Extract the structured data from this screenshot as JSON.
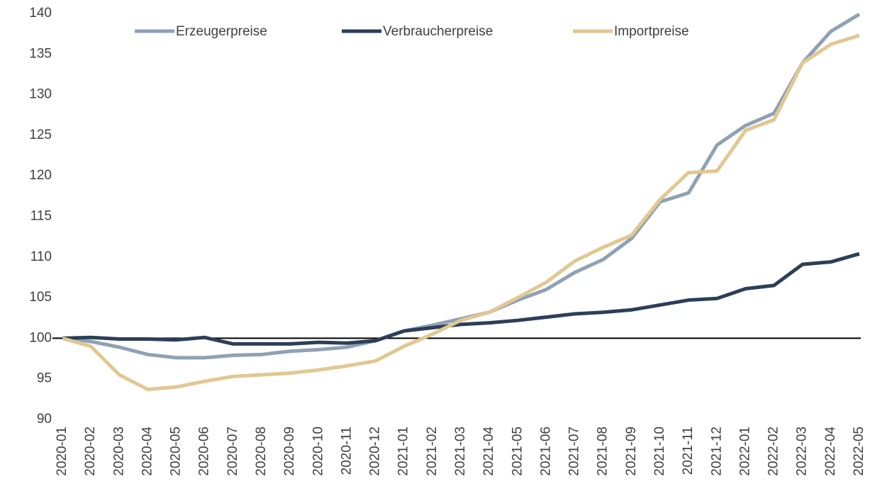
{
  "chart_data": {
    "type": "line",
    "categories": [
      "2020-01",
      "2020-02",
      "2020-03",
      "2020-04",
      "2020-05",
      "2020-06",
      "2020-07",
      "2020-08",
      "2020-09",
      "2020-10",
      "2020-11",
      "2020-12",
      "2021-01",
      "2021-02",
      "2021-03",
      "2021-04",
      "2021-05",
      "2021-06",
      "2021-07",
      "2021-08",
      "2021-09",
      "2021-10",
      "2021-11",
      "2021-12",
      "2022-01",
      "2022-02",
      "2022-03",
      "2022-04",
      "2022-05"
    ],
    "series": [
      {
        "name": "Erzeugerpreise",
        "color": "#8fa1b4",
        "values": [
          100,
          99.6,
          98.9,
          98.0,
          97.6,
          97.6,
          97.9,
          98.0,
          98.4,
          98.6,
          98.9,
          99.7,
          100.9,
          101.6,
          102.4,
          103.2,
          104.7,
          106.0,
          108.1,
          109.7,
          112.3,
          116.8,
          117.9,
          123.8,
          126.2,
          127.7,
          133.9,
          137.8,
          139.9
        ]
      },
      {
        "name": "Verbraucherpreise",
        "color": "#2c3f57",
        "values": [
          100,
          100.1,
          99.9,
          99.9,
          99.8,
          100.1,
          99.3,
          99.3,
          99.3,
          99.5,
          99.4,
          99.7,
          100.9,
          101.3,
          101.7,
          101.9,
          102.2,
          102.6,
          103.0,
          103.2,
          103.5,
          104.1,
          104.7,
          104.9,
          106.1,
          106.5,
          109.1,
          109.4,
          110.4
        ]
      },
      {
        "name": "Importpreise",
        "color": "#e2c792",
        "values": [
          100,
          99.0,
          95.5,
          93.7,
          94.0,
          94.7,
          95.3,
          95.5,
          95.7,
          96.1,
          96.6,
          97.2,
          99.0,
          100.5,
          102.2,
          103.2,
          105.0,
          106.9,
          109.5,
          111.2,
          112.7,
          117.1,
          120.4,
          120.6,
          125.6,
          126.9,
          133.9,
          136.2,
          137.3
        ]
      }
    ],
    "ylim": [
      90,
      140
    ],
    "yticks": [
      90,
      95,
      100,
      105,
      110,
      115,
      120,
      125,
      130,
      135,
      140
    ],
    "reference_line": 100,
    "legend": "top"
  }
}
